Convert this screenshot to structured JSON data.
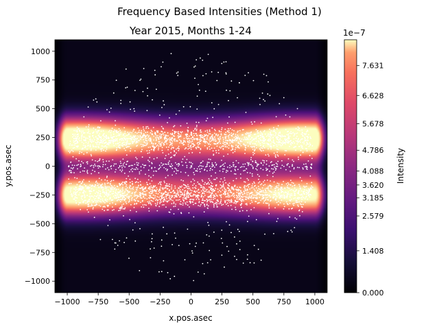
{
  "figure": {
    "suptitle": "Frequency Based Intensities (Method 1)"
  },
  "chart_data": {
    "type": "heatmap",
    "title": "Year 2015, Months 1-24",
    "xlabel": "x.pos.asec",
    "ylabel": "y.pos.asec",
    "xlim": [
      -1100,
      1100
    ],
    "ylim": [
      -1100,
      1100
    ],
    "x_ticks": [
      -1000,
      -750,
      -500,
      -250,
      0,
      250,
      500,
      750,
      1000
    ],
    "y_ticks": [
      -1000,
      -750,
      -500,
      -250,
      0,
      250,
      500,
      750,
      1000
    ],
    "grid": false,
    "colormap": "magma",
    "colorbar": {
      "label": "Intensity",
      "scale_text": "1e−7",
      "tick_labels": [
        "0.000",
        "1.408",
        "2.579",
        "3.185",
        "3.620",
        "4.088",
        "4.786",
        "5.678",
        "6.628",
        "7.631"
      ],
      "tick_values": [
        0.0,
        1.408,
        2.579,
        3.185,
        3.62,
        4.088,
        4.786,
        5.678,
        6.628,
        7.631
      ],
      "max": 8.5
    },
    "intensity_bands": [
      {
        "y": 240,
        "x_peak": 925,
        "peak": 8.0
      },
      {
        "y": 240,
        "x_peak": -925,
        "peak": 7.6
      },
      {
        "y": -250,
        "x_peak": -900,
        "peak": 7.3
      },
      {
        "y": -250,
        "x_peak": 900,
        "peak": 6.0
      }
    ],
    "scatter": {
      "color": "#ffffff",
      "description_points": "solar active-region positions, dense in latitude bands near y=+250 and y=-250, sparse elsewhere within disk radius ~1000"
    }
  }
}
